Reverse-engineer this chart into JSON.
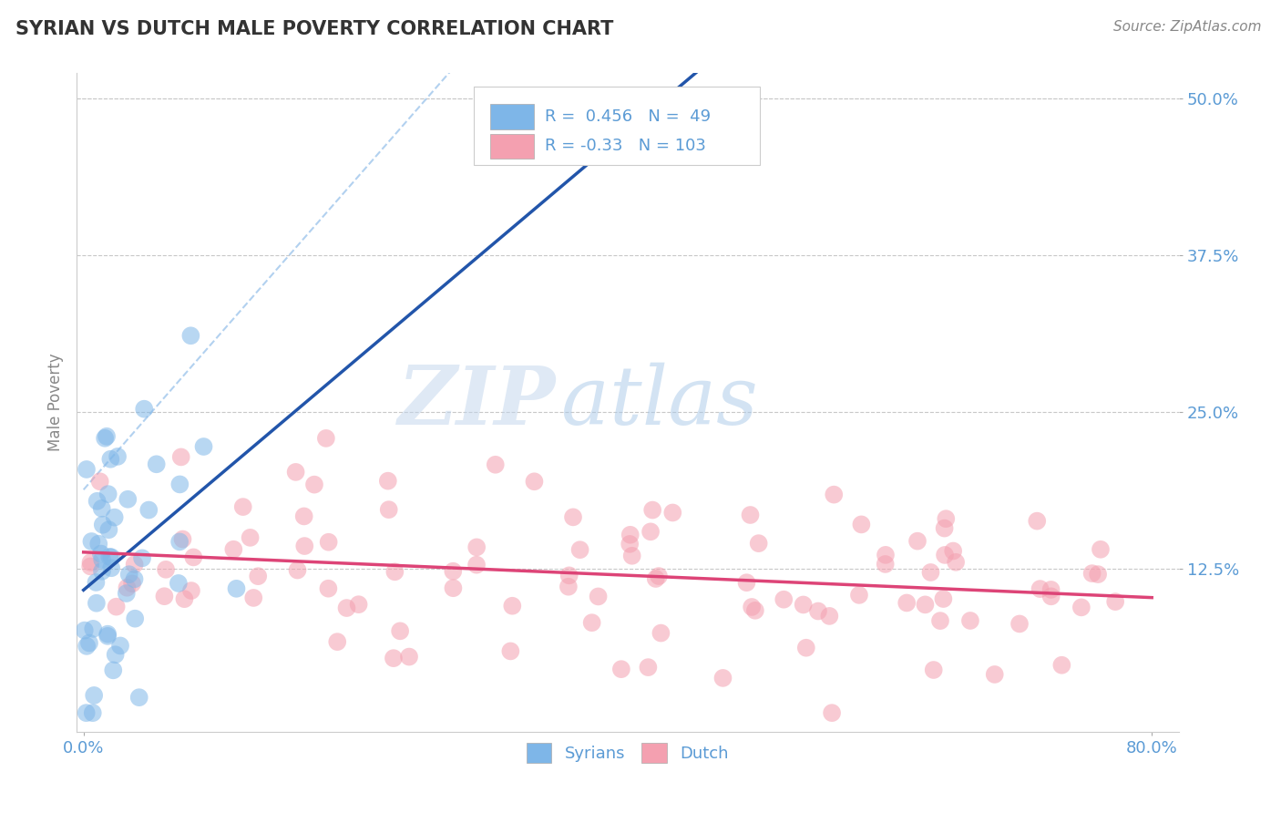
{
  "title": "SYRIAN VS DUTCH MALE POVERTY CORRELATION CHART",
  "source": "Source: ZipAtlas.com",
  "ylabel": "Male Poverty",
  "xlim": [
    -0.005,
    0.82
  ],
  "ylim": [
    -0.005,
    0.52
  ],
  "yticks": [
    0.125,
    0.25,
    0.375,
    0.5
  ],
  "ytick_labels": [
    "12.5%",
    "25.0%",
    "37.5%",
    "50.0%"
  ],
  "xtick_labels": [
    "0.0%",
    "80.0%"
  ],
  "xtick_positions": [
    0.0,
    0.8
  ],
  "syrian_color": "#7EB6E8",
  "dutch_color": "#F4A0B0",
  "syrian_R": 0.456,
  "syrian_N": 49,
  "dutch_R": -0.33,
  "dutch_N": 103,
  "watermark_text": "ZIP",
  "watermark_text2": "atlas",
  "background_color": "#FFFFFF",
  "grid_color": "#C8C8C8",
  "title_color": "#333333",
  "tick_color": "#5B9BD5",
  "syrian_trend_color": "#2255AA",
  "dutch_trend_color": "#DD4477",
  "dash_line_color": "#AACCEE",
  "syrian_seed": 7,
  "dutch_seed": 99,
  "legend_box_color": "#5B9BD5",
  "legend_N_color": "#333333"
}
